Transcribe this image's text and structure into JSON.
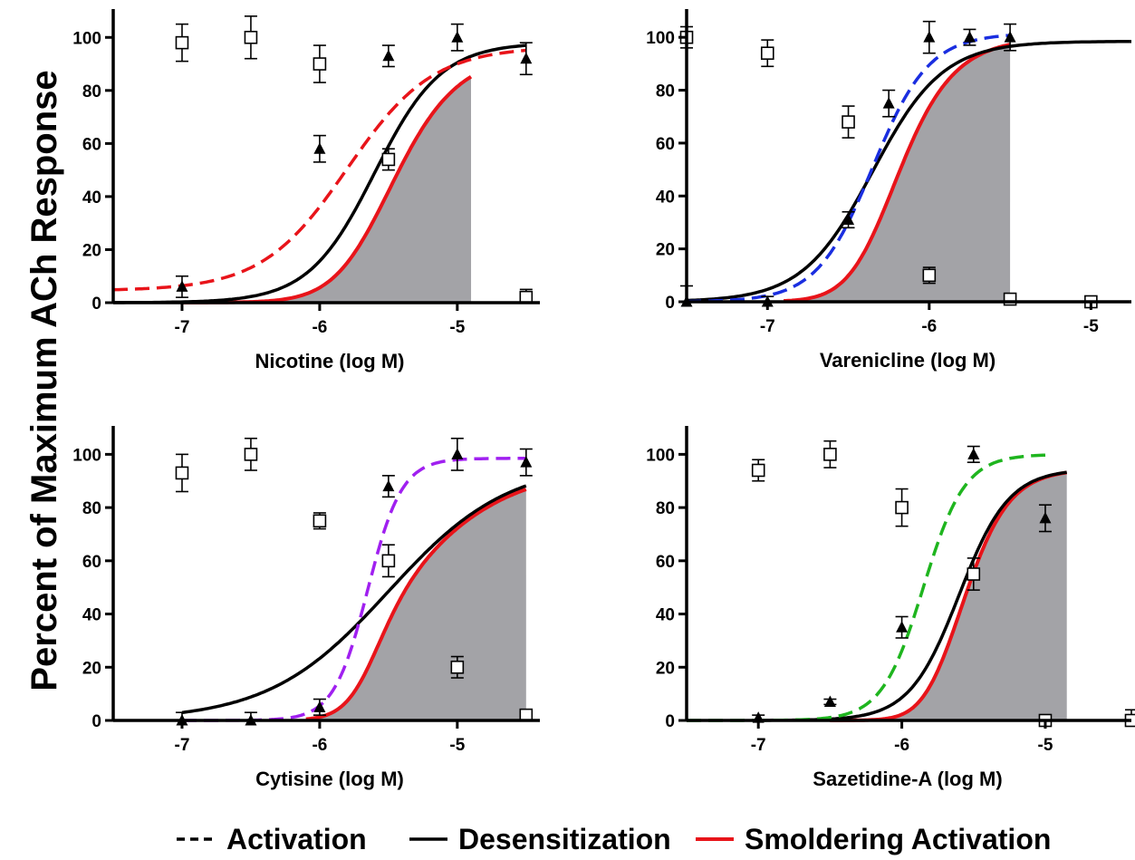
{
  "y_axis_title": "Percent  of Maximum  ACh Response",
  "legend": [
    {
      "label": "Activation",
      "style": "dashed",
      "color": "#000000"
    },
    {
      "label": "Desensitization",
      "style": "solid",
      "color": "#000000"
    },
    {
      "label": "Smoldering Activation",
      "style": "solid",
      "color": "#e8141a"
    }
  ],
  "colors": {
    "desensitization": "#000000",
    "smoldering": "#e8141a",
    "area_fill": "#a3a3a7"
  },
  "chart_data": [
    {
      "type": "line",
      "xlabel": "Nicotine (log M)",
      "ylabel": "",
      "xlim": [
        -7.5,
        -4.4
      ],
      "ylim": [
        0,
        110
      ],
      "xticks": [
        -7,
        -6,
        -5
      ],
      "yticks": [
        0,
        20,
        40,
        60,
        80,
        100
      ],
      "activation_color": "#e8141a",
      "series": [
        {
          "name": "Activation",
          "curve": "dashed",
          "bottom": 4.5,
          "top": 96.5,
          "ec50": -5.8,
          "hill": 1.4,
          "x_from": -7.5,
          "x_to": -4.5
        },
        {
          "name": "Desensitization",
          "curve": "solid",
          "bottom": 0,
          "top": 98,
          "ec50": -5.6,
          "hill": 1.8,
          "x_from": -7.5,
          "x_to": -4.5
        },
        {
          "name": "Smoldering Activation",
          "curve": "area",
          "x_from": -7.0,
          "x_to": -4.9
        }
      ],
      "activation_points": [
        {
          "x": -7,
          "y": 6,
          "err": 4
        },
        {
          "x": -6,
          "y": 58,
          "err": 5
        },
        {
          "x": -5.5,
          "y": 93,
          "err": 4
        },
        {
          "x": -5,
          "y": 100,
          "err": 5
        },
        {
          "x": -4.5,
          "y": 92,
          "err": 6
        }
      ],
      "desensitization_points": [
        {
          "x": -7,
          "y": 98,
          "err": 7
        },
        {
          "x": -6.5,
          "y": 100,
          "err": 8
        },
        {
          "x": -6,
          "y": 90,
          "err": 7
        },
        {
          "x": -5.5,
          "y": 54,
          "err": 4
        },
        {
          "x": -4.5,
          "y": 2,
          "err": 3
        }
      ]
    },
    {
      "type": "line",
      "xlabel": "Varenicline (log M)",
      "ylabel": "",
      "xlim": [
        -7.5,
        -4.75
      ],
      "ylim": [
        0,
        110
      ],
      "xticks": [
        -7,
        -6,
        -5
      ],
      "yticks": [
        0,
        20,
        40,
        60,
        80,
        100
      ],
      "activation_color": "#1a2ee0",
      "series": [
        {
          "name": "Activation",
          "curve": "dashed",
          "bottom": 0,
          "top": 101.5,
          "ec50": -6.35,
          "hill": 2.5,
          "x_from": -7.5,
          "x_to": -5.5
        },
        {
          "name": "Desensitization",
          "curve": "solid",
          "bottom": 0,
          "top": 98.5,
          "ec50": -6.35,
          "hill": 2.0,
          "x_from": -7.5,
          "x_to": -4.75
        },
        {
          "name": "Smoldering Activation",
          "curve": "area",
          "x_from": -6.9,
          "x_to": -5.5
        }
      ],
      "activation_points": [
        {
          "x": -7.5,
          "y": 0,
          "err": 6
        },
        {
          "x": -7,
          "y": 0,
          "err": 2
        },
        {
          "x": -6.5,
          "y": 31,
          "err": 3
        },
        {
          "x": -6.25,
          "y": 75,
          "err": 5
        },
        {
          "x": -6,
          "y": 100,
          "err": 6
        },
        {
          "x": -5.75,
          "y": 100,
          "err": 3
        },
        {
          "x": -5.5,
          "y": 100,
          "err": 5
        }
      ],
      "desensitization_points": [
        {
          "x": -7.5,
          "y": 100,
          "err": 4
        },
        {
          "x": -7,
          "y": 94,
          "err": 5
        },
        {
          "x": -6.5,
          "y": 68,
          "err": 6
        },
        {
          "x": -6,
          "y": 10,
          "err": 3
        },
        {
          "x": -5.5,
          "y": 1,
          "err": 1
        },
        {
          "x": -5,
          "y": 0,
          "err": 2
        }
      ]
    },
    {
      "type": "line",
      "xlabel": "Cytisine (log M)",
      "ylabel": "",
      "xlim": [
        -7.5,
        -4.4
      ],
      "ylim": [
        0,
        110
      ],
      "xticks": [
        -7,
        -6,
        -5
      ],
      "yticks": [
        0,
        20,
        40,
        60,
        80,
        100
      ],
      "activation_color": "#a020f0",
      "series": [
        {
          "name": "Activation",
          "curve": "dashed",
          "bottom": 0,
          "top": 98.5,
          "ec50": -5.65,
          "hill": 3.5,
          "x_from": -7,
          "x_to": -4.5
        },
        {
          "name": "Desensitization",
          "curve": "solid",
          "bottom": 0,
          "top": 97,
          "ec50": -5.5,
          "hill": 1.0,
          "x_from": -7,
          "x_to": -4.5
        },
        {
          "name": "Smoldering Activation",
          "curve": "area",
          "x_from": -6.1,
          "x_to": -4.5
        }
      ],
      "activation_points": [
        {
          "x": -7,
          "y": 0,
          "err": 3
        },
        {
          "x": -6.5,
          "y": 0,
          "err": 3
        },
        {
          "x": -6,
          "y": 5,
          "err": 3
        },
        {
          "x": -5.5,
          "y": 88,
          "err": 4
        },
        {
          "x": -5,
          "y": 100,
          "err": 6
        },
        {
          "x": -4.5,
          "y": 97,
          "err": 5
        }
      ],
      "desensitization_points": [
        {
          "x": -7,
          "y": 93,
          "err": 7
        },
        {
          "x": -6.5,
          "y": 100,
          "err": 6
        },
        {
          "x": -6,
          "y": 75,
          "err": 3
        },
        {
          "x": -5.5,
          "y": 60,
          "err": 6
        },
        {
          "x": -5,
          "y": 20,
          "err": 4
        },
        {
          "x": -4.5,
          "y": 2,
          "err": 2
        }
      ]
    },
    {
      "type": "line",
      "xlabel": "Sazetidine-A (log M)",
      "ylabel": "",
      "xlim": [
        -7.5,
        -4.4
      ],
      "ylim": [
        0,
        110
      ],
      "xticks": [
        -7,
        -6,
        -5
      ],
      "yticks": [
        0,
        20,
        40,
        60,
        80,
        100
      ],
      "activation_color": "#1fb51f",
      "series": [
        {
          "name": "Activation",
          "curve": "dashed",
          "bottom": 0,
          "top": 100,
          "ec50": -5.85,
          "hill": 3.0,
          "x_from": -7.5,
          "x_to": -5
        },
        {
          "name": "Desensitization",
          "curve": "solid",
          "bottom": 0,
          "top": 94.5,
          "ec50": -5.6,
          "hill": 2.5,
          "x_from": -7,
          "x_to": -4.85
        },
        {
          "name": "Smoldering Activation",
          "curve": "area",
          "x_from": -6.5,
          "x_to": -4.85
        }
      ],
      "activation_points": [
        {
          "x": -7,
          "y": 1,
          "err": 1
        },
        {
          "x": -6.5,
          "y": 7,
          "err": 1
        },
        {
          "x": -6,
          "y": 35,
          "err": 4
        },
        {
          "x": -5.5,
          "y": 100,
          "err": 3
        },
        {
          "x": -5,
          "y": 76,
          "err": 5
        }
      ],
      "desensitization_points": [
        {
          "x": -7,
          "y": 94,
          "err": 4
        },
        {
          "x": -6.5,
          "y": 100,
          "err": 5
        },
        {
          "x": -6,
          "y": 80,
          "err": 7
        },
        {
          "x": -5.5,
          "y": 55,
          "err": 6
        },
        {
          "x": -5,
          "y": 0,
          "err": 2
        },
        {
          "x": -4.4,
          "y": 0,
          "err": 4
        }
      ]
    }
  ]
}
